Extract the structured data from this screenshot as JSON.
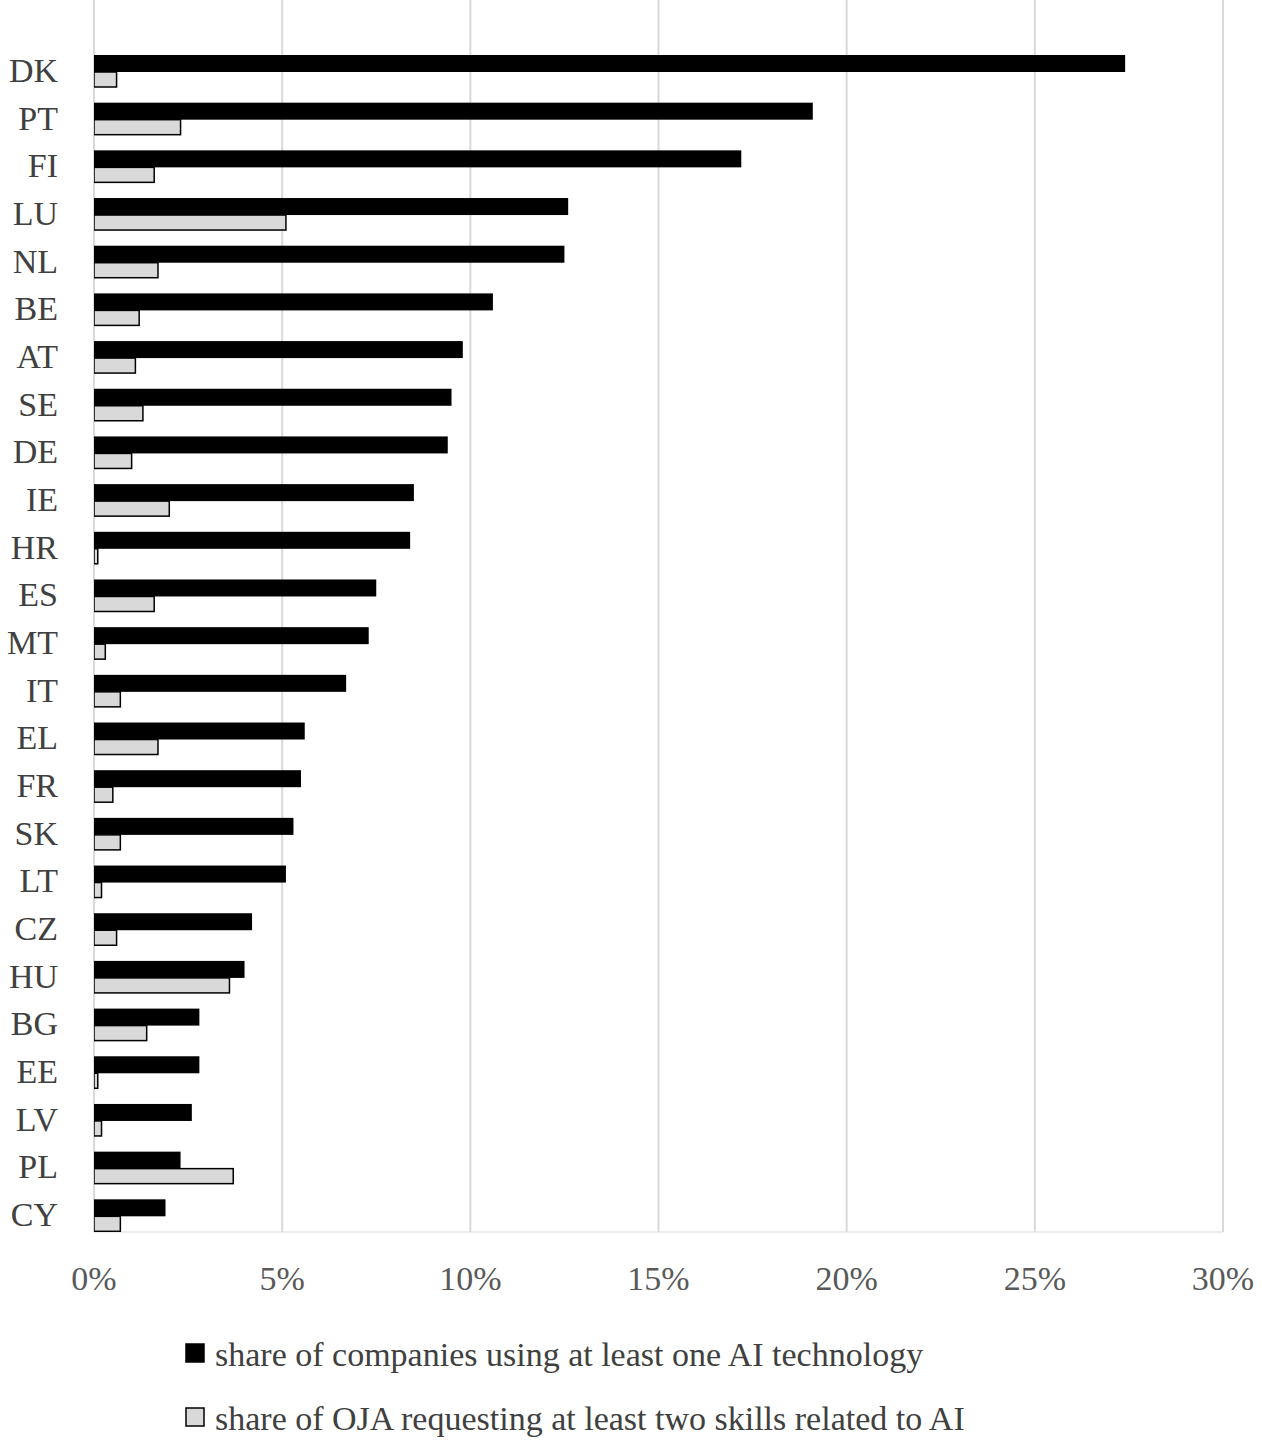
{
  "chart_data": {
    "type": "bar",
    "orientation": "horizontal",
    "grid": true,
    "legend": "bottom",
    "categories": [
      "DK",
      "PT",
      "FI",
      "LU",
      "NL",
      "BE",
      "AT",
      "SE",
      "DE",
      "IE",
      "HR",
      "ES",
      "MT",
      "IT",
      "EL",
      "FR",
      "SK",
      "LT",
      "CZ",
      "HU",
      "BG",
      "EE",
      "LV",
      "PL",
      "CY"
    ],
    "series": [
      {
        "name": "share of companies using at least one AI technology",
        "color": "#000000",
        "values": [
          27.4,
          19.1,
          17.2,
          12.6,
          12.5,
          10.6,
          9.8,
          9.5,
          9.4,
          8.5,
          8.4,
          7.5,
          7.3,
          6.7,
          5.6,
          5.5,
          5.3,
          5.1,
          4.2,
          4.0,
          2.8,
          2.8,
          2.6,
          2.3,
          1.9
        ]
      },
      {
        "name": "share of OJA requesting at least two skills related to AI",
        "color": "#d9d9d9",
        "values": [
          0.6,
          2.3,
          1.6,
          5.1,
          1.7,
          1.2,
          1.1,
          1.3,
          1.0,
          2.0,
          0.1,
          1.6,
          0.3,
          0.7,
          1.7,
          0.5,
          0.7,
          0.2,
          0.6,
          3.6,
          1.4,
          0.1,
          0.2,
          3.7,
          0.7
        ]
      }
    ],
    "xlim": [
      0,
      30
    ],
    "xticks": [
      {
        "value": 0,
        "label": "0%"
      },
      {
        "value": 5,
        "label": "5%"
      },
      {
        "value": 10,
        "label": "10%"
      },
      {
        "value": 15,
        "label": "15%"
      },
      {
        "value": 20,
        "label": "20%"
      },
      {
        "value": 25,
        "label": "25%"
      },
      {
        "value": 30,
        "label": "30%"
      }
    ]
  }
}
